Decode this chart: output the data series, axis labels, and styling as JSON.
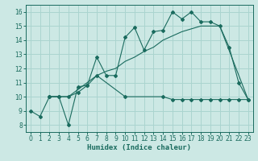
{
  "bg_color": "#cce8e4",
  "grid_color": "#aad4cf",
  "line_color": "#1a6b5e",
  "xlabel": "Humidex (Indice chaleur)",
  "xlim": [
    -0.5,
    23.5
  ],
  "ylim": [
    7.5,
    16.5
  ],
  "yticks": [
    8,
    9,
    10,
    11,
    12,
    13,
    14,
    15,
    16
  ],
  "xticks": [
    0,
    1,
    2,
    3,
    4,
    5,
    6,
    7,
    8,
    9,
    10,
    11,
    12,
    13,
    14,
    15,
    16,
    17,
    18,
    19,
    20,
    21,
    22,
    23
  ],
  "line1_x": [
    0,
    1,
    2,
    3,
    4,
    5,
    6,
    7,
    8,
    9,
    10,
    11,
    12,
    13,
    14,
    15,
    16,
    17,
    18,
    19,
    20,
    21,
    22,
    23
  ],
  "line1_y": [
    9.0,
    8.6,
    10.0,
    10.0,
    8.0,
    10.7,
    10.8,
    12.8,
    11.5,
    11.5,
    14.2,
    14.9,
    13.3,
    14.6,
    14.7,
    16.0,
    15.5,
    16.0,
    15.3,
    15.3,
    15.0,
    13.5,
    11.0,
    9.8
  ],
  "line2_x": [
    2,
    3,
    4,
    5,
    6,
    7,
    10,
    14,
    15,
    16,
    17,
    18,
    19,
    20,
    21,
    22,
    23
  ],
  "line2_y": [
    10.0,
    10.0,
    10.0,
    10.3,
    10.8,
    11.5,
    10.0,
    10.0,
    9.8,
    9.8,
    9.8,
    9.8,
    9.8,
    9.8,
    9.8,
    9.8,
    9.8
  ],
  "line3_x": [
    2,
    3,
    4,
    5,
    6,
    7,
    8,
    9,
    10,
    11,
    12,
    13,
    14,
    15,
    16,
    17,
    18,
    19,
    20,
    23
  ],
  "line3_y": [
    10.0,
    10.0,
    10.0,
    10.5,
    11.0,
    11.5,
    11.8,
    12.0,
    12.5,
    12.8,
    13.2,
    13.5,
    14.0,
    14.3,
    14.6,
    14.8,
    15.0,
    15.0,
    15.0,
    9.8
  ]
}
